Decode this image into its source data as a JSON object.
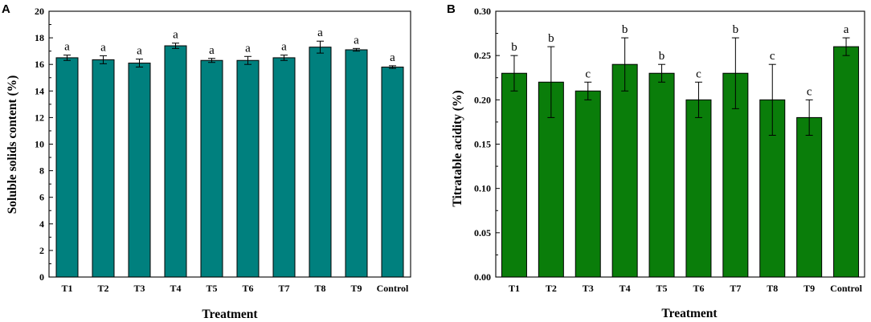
{
  "chart_data": [
    {
      "panel": "A",
      "type": "bar",
      "title": "",
      "xlabel": "Treatment",
      "ylabel": "Soluble solids content (%)",
      "categories": [
        "T1",
        "T2",
        "T3",
        "T4",
        "T5",
        "T6",
        "T7",
        "T8",
        "T9",
        "Control"
      ],
      "values": [
        16.5,
        16.35,
        16.1,
        17.4,
        16.3,
        16.3,
        16.5,
        17.3,
        17.1,
        15.8
      ],
      "errors": [
        0.2,
        0.3,
        0.3,
        0.2,
        0.15,
        0.3,
        0.2,
        0.45,
        0.1,
        0.1
      ],
      "letters": [
        "a",
        "a",
        "a",
        "a",
        "a",
        "a",
        "a",
        "a",
        "a",
        "a"
      ],
      "ylim": [
        0,
        20
      ],
      "yticks": [
        "0",
        "2",
        "4",
        "6",
        "8",
        "10",
        "12",
        "14",
        "16",
        "18",
        "20"
      ],
      "bar_color": "#00807e"
    },
    {
      "panel": "B",
      "type": "bar",
      "title": "",
      "xlabel": "Treatment",
      "ylabel": "Titratable acidity (%)",
      "categories": [
        "T1",
        "T2",
        "T3",
        "T4",
        "T5",
        "T6",
        "T7",
        "T8",
        "T9",
        "Control"
      ],
      "values": [
        0.23,
        0.22,
        0.21,
        0.24,
        0.23,
        0.2,
        0.23,
        0.2,
        0.18,
        0.26
      ],
      "errors": [
        0.02,
        0.04,
        0.01,
        0.03,
        0.01,
        0.02,
        0.04,
        0.04,
        0.02,
        0.01
      ],
      "letters": [
        "b",
        "b",
        "c",
        "b",
        "b",
        "c",
        "b",
        "c",
        "c",
        "a"
      ],
      "ylim": [
        0,
        0.3
      ],
      "yticks": [
        "0.00",
        "0.05",
        "0.10",
        "0.15",
        "0.20",
        "0.25",
        "0.30"
      ],
      "bar_color": "#0a7d0a"
    }
  ]
}
